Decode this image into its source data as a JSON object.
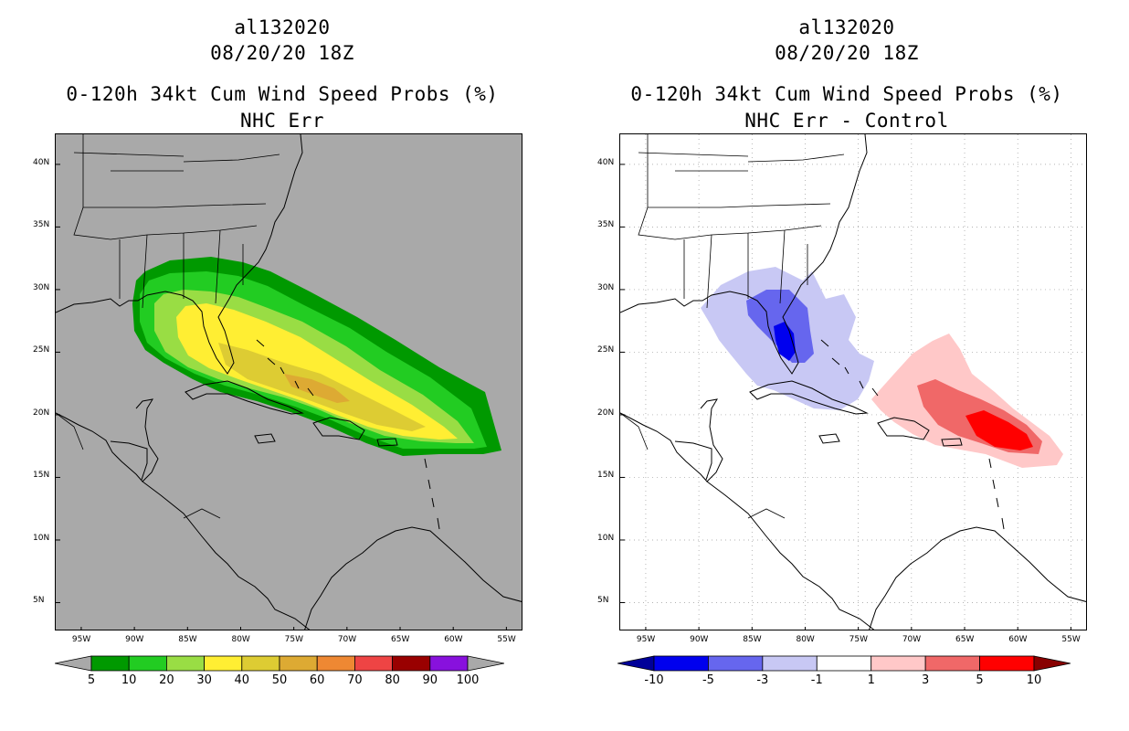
{
  "left_panel": {
    "storm_id": "al132020",
    "datetime": "08/20/20 18Z",
    "product": "0-120h 34kt Cum Wind Speed Probs (%)",
    "subtitle": "NHC Err",
    "colorbar": {
      "colors": [
        "#a9a9a9",
        "#009900",
        "#22cc22",
        "#99dd44",
        "#ffee33",
        "#ddcc33",
        "#ddaa33",
        "#ee8833",
        "#ee4444",
        "#990000",
        "#8811dd",
        "#a9a9a9"
      ],
      "labels": [
        "5",
        "10",
        "20",
        "30",
        "40",
        "50",
        "60",
        "70",
        "80",
        "90",
        "100"
      ]
    },
    "shading": {
      "colors": [
        "#009900",
        "#22cc22",
        "#99dd44",
        "#ffee33",
        "#ddcc33",
        "#ddaa33"
      ],
      "levels": [
        5,
        10,
        20,
        30,
        40,
        50
      ]
    }
  },
  "right_panel": {
    "storm_id": "al132020",
    "datetime": "08/20/20 18Z",
    "product": "0-120h 34kt Cum Wind Speed Probs (%)",
    "subtitle": "NHC Err - Control",
    "colorbar": {
      "colors": [
        "#000099",
        "#0000ee",
        "#6666ee",
        "#c8c8f4",
        "#ffffff",
        "#ffc8c8",
        "#f06868",
        "#ff0000",
        "#880000"
      ],
      "labels": [
        "-10",
        "-5",
        "-3",
        "-1",
        "1",
        "3",
        "5",
        "10"
      ]
    },
    "negative_colors": [
      "#c8c8f4",
      "#6666ee",
      "#0000ee"
    ],
    "positive_colors": [
      "#ffc8c8",
      "#f06868",
      "#ff0000"
    ]
  },
  "axes": {
    "lat_labels": [
      "40N",
      "35N",
      "30N",
      "25N",
      "20N",
      "15N",
      "10N",
      "5N"
    ],
    "lon_labels": [
      "95W",
      "90W",
      "85W",
      "80W",
      "75W",
      "70W",
      "65W",
      "60W",
      "55W"
    ],
    "lat_values": [
      40,
      35,
      30,
      25,
      20,
      15,
      10,
      5
    ],
    "lon_values": [
      -95,
      -90,
      -85,
      -80,
      -75,
      -70,
      -65,
      -60,
      -55
    ],
    "lat_range": [
      2.7,
      42.4
    ],
    "lon_range": [
      -97.4,
      -53.4
    ]
  }
}
